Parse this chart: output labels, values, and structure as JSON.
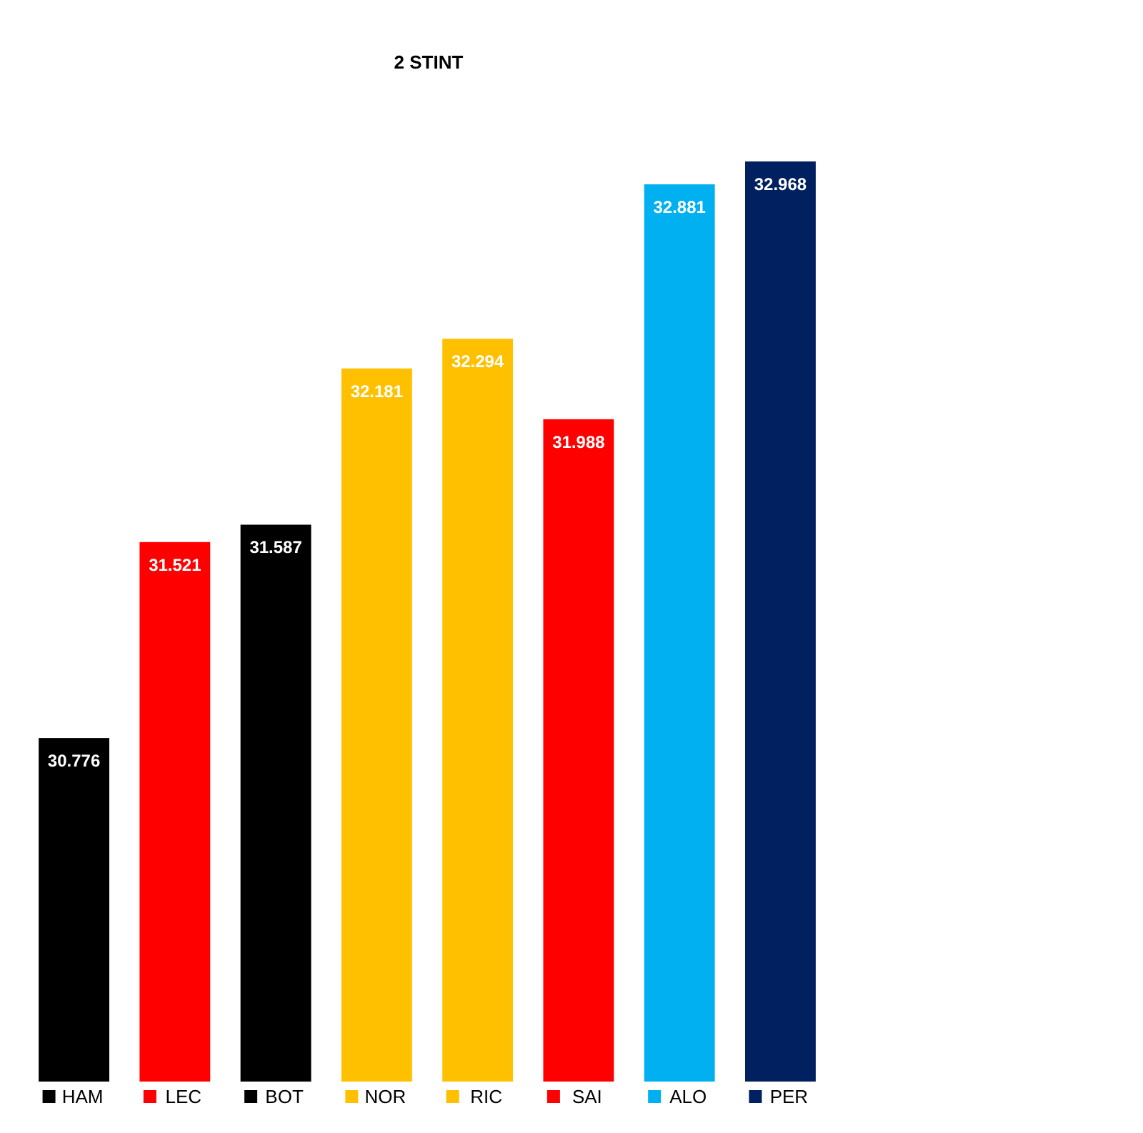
{
  "chart_data": {
    "type": "bar",
    "title": "2 STINT",
    "categories": [
      "HAM",
      "LEC",
      "BOT",
      "NOR",
      "RIC",
      "SAI",
      "ALO",
      "PER"
    ],
    "values": [
      30.776,
      31.521,
      31.587,
      32.181,
      32.294,
      31.988,
      32.881,
      32.968
    ],
    "colors": [
      "#000000",
      "#ff0000",
      "#000000",
      "#ffc000",
      "#ffc000",
      "#ff0000",
      "#00b0f0",
      "#002060"
    ],
    "ylim": [
      29.47,
      32.968
    ],
    "tick_labels": "x",
    "data_labels": true
  }
}
